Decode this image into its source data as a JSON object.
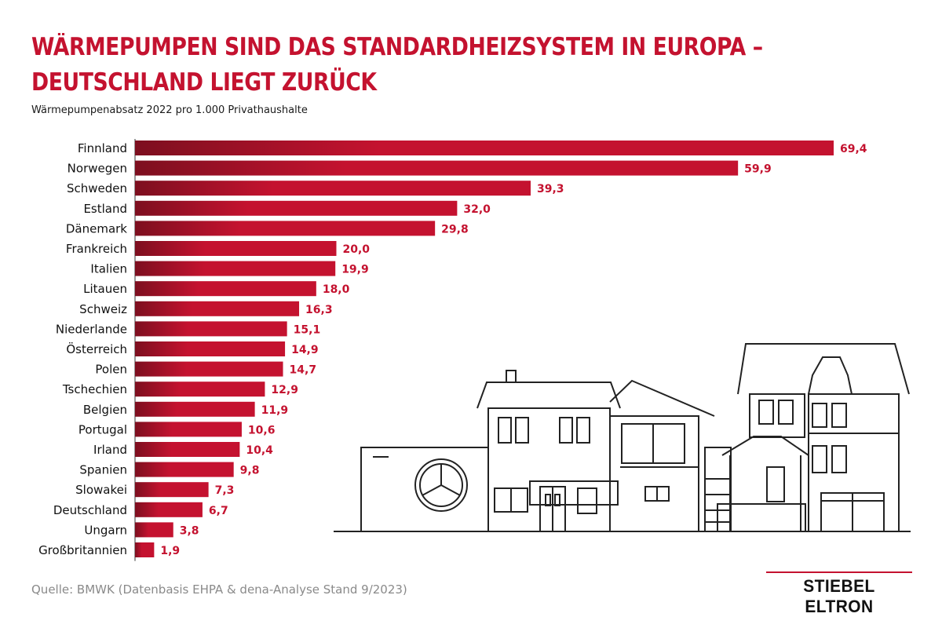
{
  "header": {
    "title_line1": "WÄRMEPUMPEN SIND DAS STANDARDHEIZSYSTEM IN EUROPA –",
    "title_line2": "DEUTSCHLAND LIEGT ZURÜCK",
    "subtitle": "Wärmepumpenabsatz 2022 pro 1.000 Privathaushalte"
  },
  "chart_data": {
    "type": "bar",
    "orientation": "horizontal",
    "categories": [
      "Finnland",
      "Norwegen",
      "Schweden",
      "Estland",
      "Dänemark",
      "Frankreich",
      "Italien",
      "Litauen",
      "Schweiz",
      "Niederlande",
      "Österreich",
      "Polen",
      "Tschechien",
      "Belgien",
      "Portugal",
      "Irland",
      "Spanien",
      "Slowakei",
      "Deutschland",
      "Ungarn",
      "Großbritannien"
    ],
    "values": [
      69.4,
      59.9,
      39.3,
      32.0,
      29.8,
      20.0,
      19.9,
      18.0,
      16.3,
      15.1,
      14.9,
      14.7,
      12.9,
      11.9,
      10.6,
      10.4,
      9.8,
      7.3,
      6.7,
      3.8,
      1.9
    ],
    "value_labels": [
      "69,4",
      "59,9",
      "39,3",
      "32,0",
      "29,8",
      "20,0",
      "19,9",
      "18,0",
      "16,3",
      "15,1",
      "14,9",
      "14,7",
      "12,9",
      "11,9",
      "10,6",
      "10,4",
      "9,8",
      "7,3",
      "6,7",
      "3,8",
      "1,9"
    ],
    "bar_color": "#c4122f",
    "bar_color_dark": "#7d0f1f",
    "label_color": "#c4122f",
    "xlim": [
      0,
      69.4
    ],
    "grid": false
  },
  "footer": {
    "source": "Quelle: BMWK (Datenbasis EHPA & dena-Analyse Stand 9/2023)",
    "logo": "STIEBEL ELTRON"
  },
  "illustration": {
    "icon": "house-with-heat-pump-icon"
  }
}
